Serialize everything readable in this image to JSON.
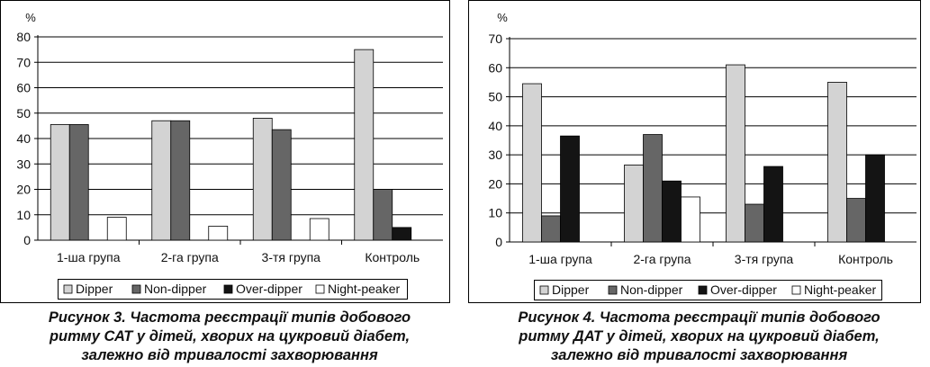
{
  "colors": {
    "Dipper": "#d3d3d3",
    "Non-dipper": "#666666",
    "Over-dipper": "#141414",
    "Night-peaker": "#ffffff"
  },
  "figures": [
    {
      "caption": [
        "Рисунок 3. Частота реєстрації типів добового",
        "ритму САТ у дітей, хворих на цукровий діабет,",
        "залежно від тривалості захворювання"
      ]
    },
    {
      "caption": [
        "Рисунок 4. Частота реєстрації типів добового",
        "ритму ДАТ у дітей, хворих на цукровий діабет,",
        "залежно від тривалості захворювання"
      ]
    }
  ],
  "chart_data": [
    {
      "type": "bar",
      "ylabel": "%",
      "ylim": [
        0,
        80
      ],
      "yticks": [
        0,
        10,
        20,
        30,
        40,
        50,
        60,
        70,
        80
      ],
      "grid": true,
      "legend": "bottom",
      "categories": [
        "1-ша група",
        "2-га група",
        "3-тя група",
        "Контроль"
      ],
      "series": [
        {
          "name": "Dipper",
          "values": [
            45.5,
            47,
            48,
            75
          ]
        },
        {
          "name": "Non-dipper",
          "values": [
            45.5,
            47,
            43.5,
            20
          ]
        },
        {
          "name": "Over-dipper",
          "values": [
            0,
            0,
            0,
            5
          ]
        },
        {
          "name": "Night-peaker",
          "values": [
            9,
            5.5,
            8.5,
            0
          ]
        }
      ]
    },
    {
      "type": "bar",
      "ylabel": "%",
      "ylim": [
        0,
        70
      ],
      "yticks": [
        0,
        10,
        20,
        30,
        40,
        50,
        60,
        70
      ],
      "grid": true,
      "legend": "bottom",
      "categories": [
        "1-ша група",
        "2-га група",
        "3-тя група",
        "Контроль"
      ],
      "series": [
        {
          "name": "Dipper",
          "values": [
            54.5,
            26.5,
            61,
            55
          ]
        },
        {
          "name": "Non-dipper",
          "values": [
            9,
            37,
            13,
            15
          ]
        },
        {
          "name": "Over-dipper",
          "values": [
            36.5,
            21,
            26,
            30
          ]
        },
        {
          "name": "Night-peaker",
          "values": [
            0,
            15.5,
            0,
            0
          ]
        }
      ]
    }
  ]
}
